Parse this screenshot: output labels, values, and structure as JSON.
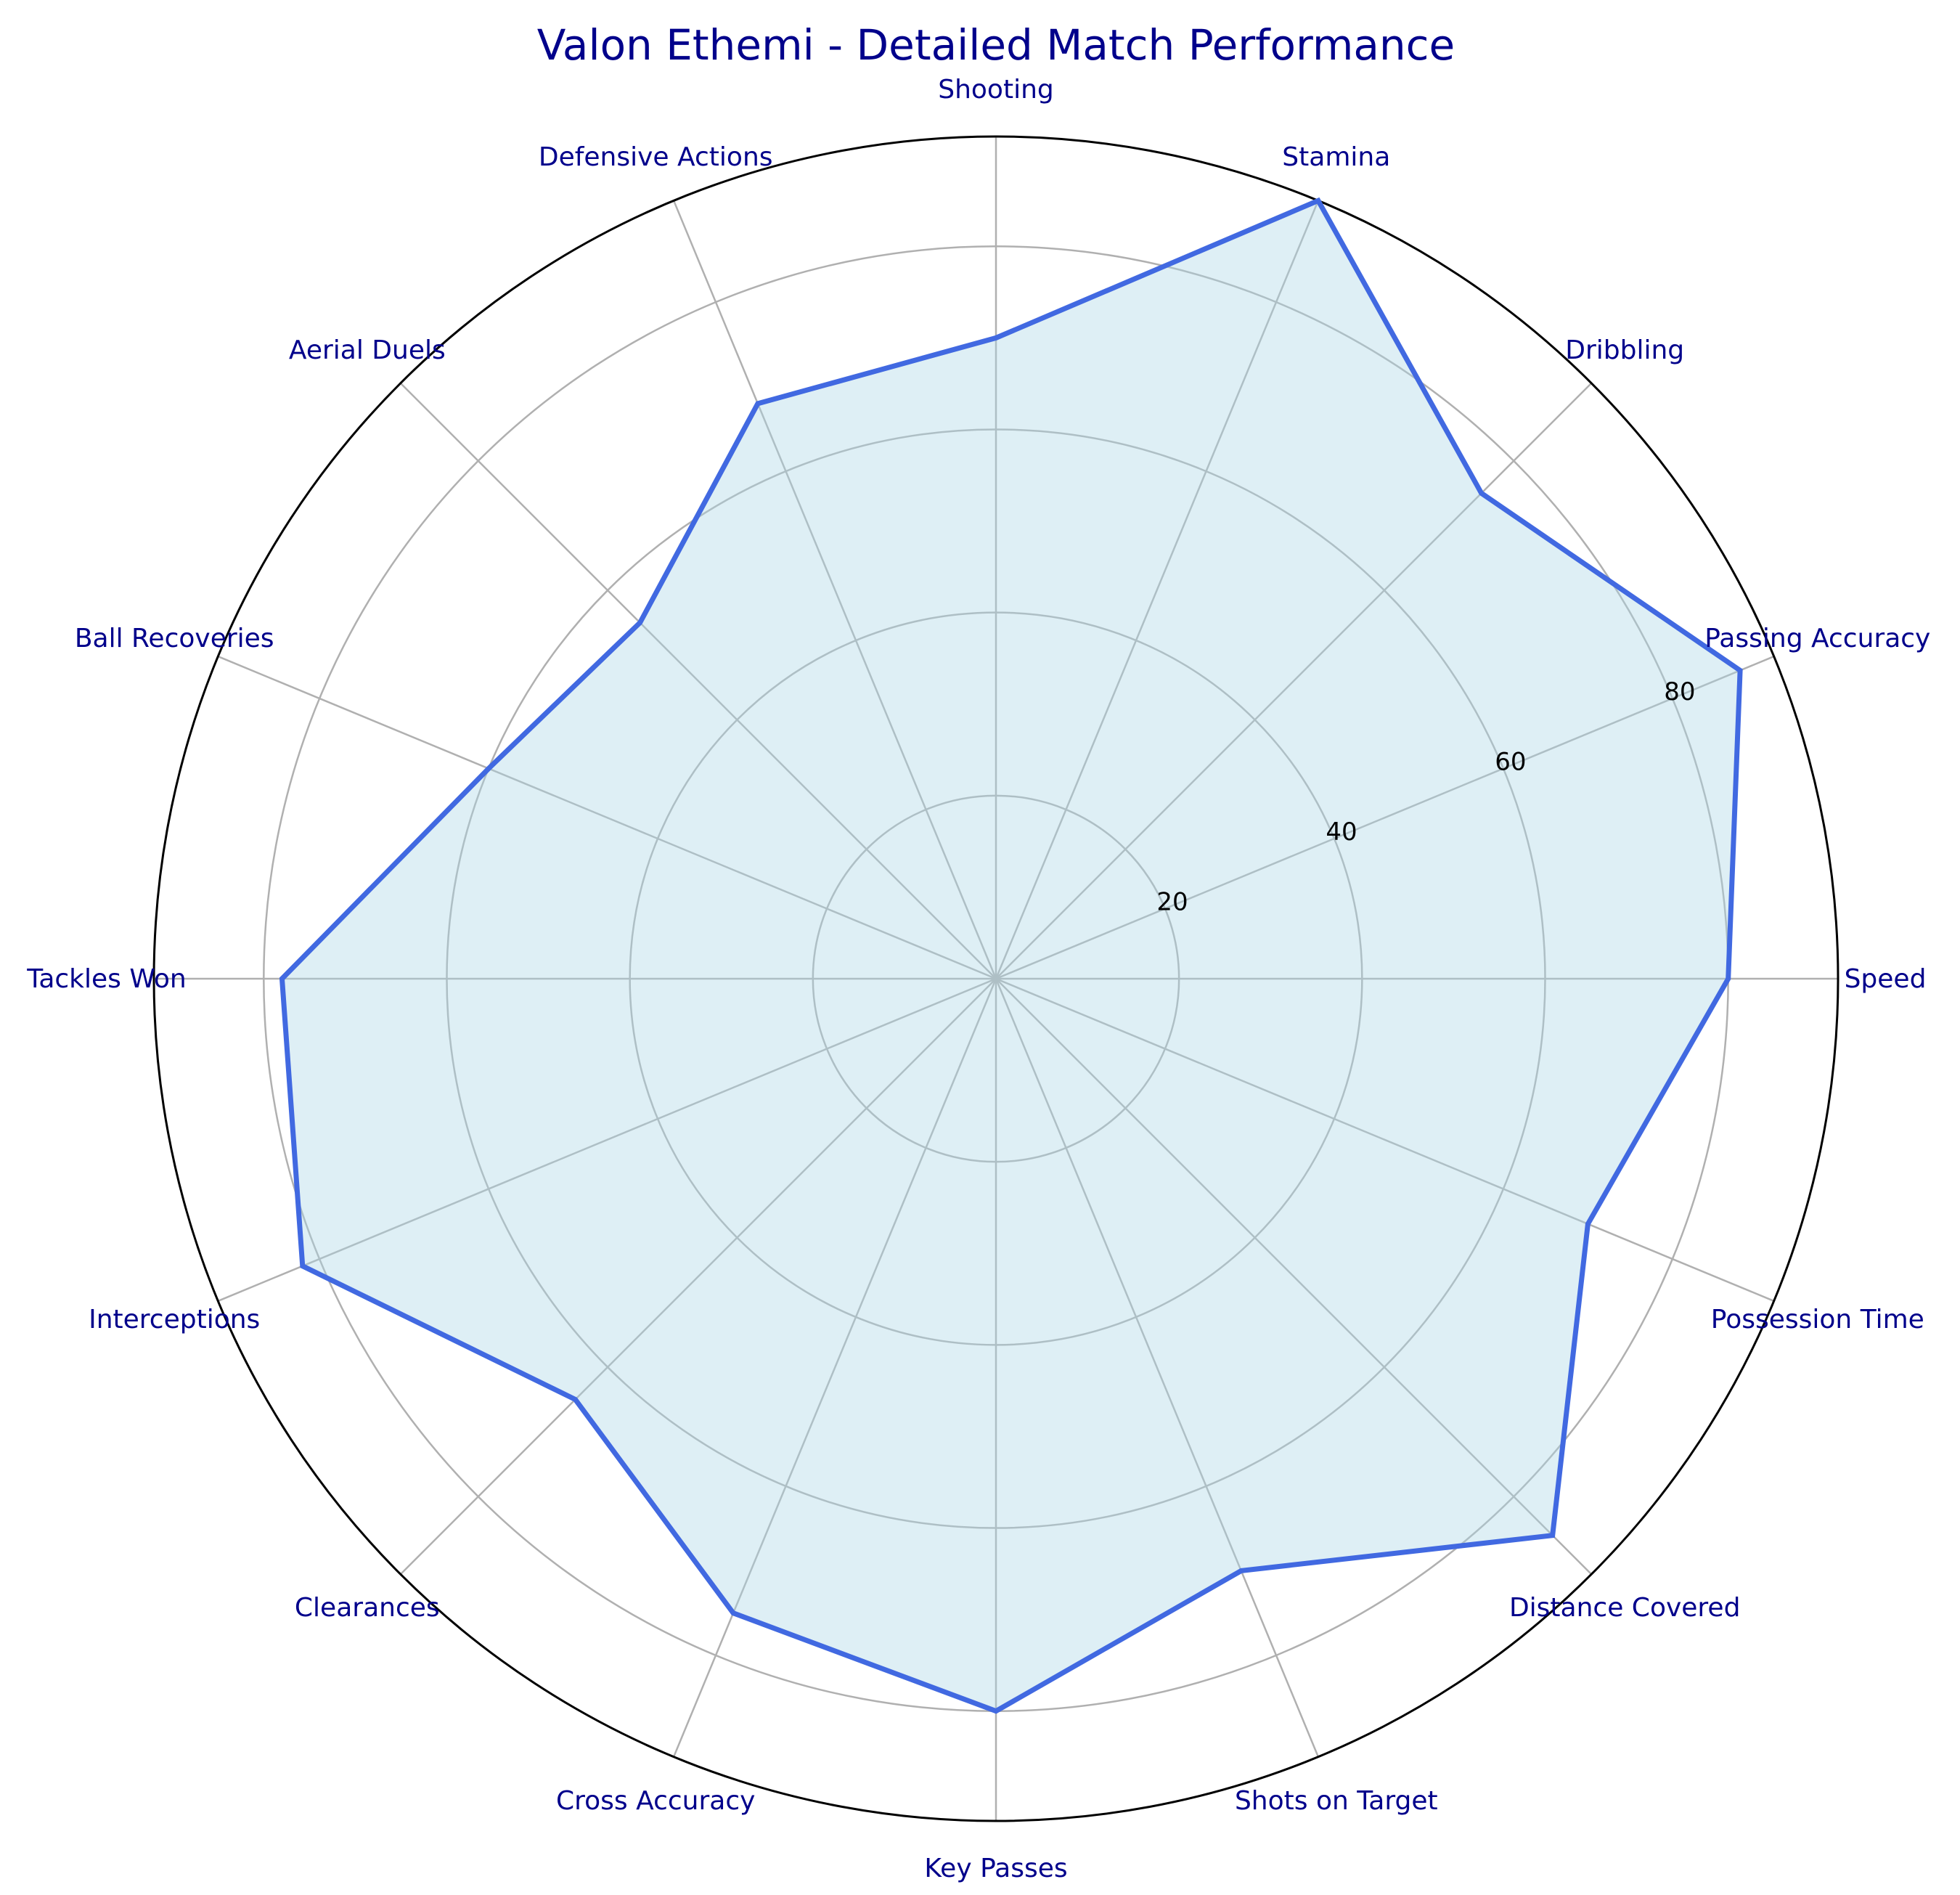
{
  "chart_data": {
    "type": "radar",
    "title": "Valon Ethemi - Detailed Match Performance",
    "categories": [
      "Speed",
      "Passing Accuracy",
      "Dribbling",
      "Stamina",
      "Shooting",
      "Defensive Actions",
      "Aerial Duels",
      "Ball Recoveries",
      "Tackles Won",
      "Interceptions",
      "Clearances",
      "Cross Accuracy",
      "Key Passes",
      "Shots on Target",
      "Distance Covered",
      "Possession Time"
    ],
    "series": [
      {
        "values": [
          80,
          88,
          75,
          92,
          70,
          68,
          55,
          60,
          78,
          82,
          65,
          75,
          80,
          70,
          86,
          70
        ]
      }
    ],
    "rlim": [
      0,
      92
    ],
    "rticks": [
      20,
      40,
      60,
      80
    ],
    "grid": true,
    "colors": {
      "line": "#4169e1",
      "fill": "#add8e6",
      "text": "#00008b",
      "grid": "#b0b0b0"
    }
  }
}
